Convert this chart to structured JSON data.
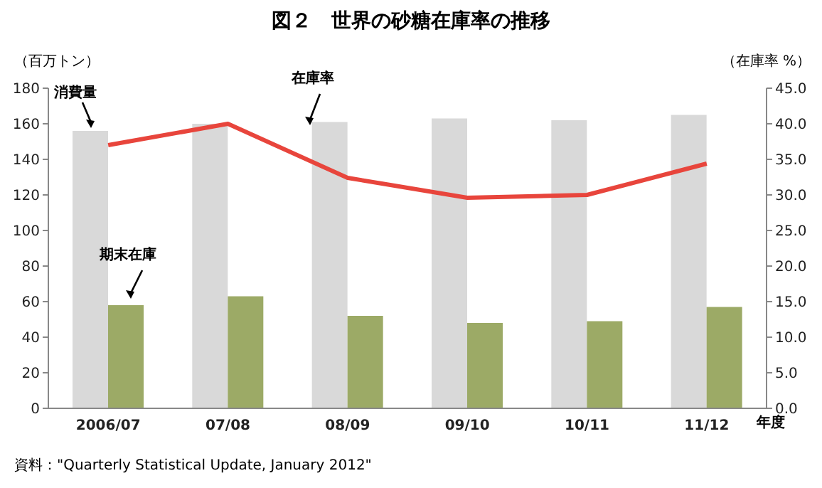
{
  "chart_data": {
    "type": "bar",
    "title": "図２　世界の砂糖在庫率の推移",
    "xlabel": "年度",
    "ylabel": "（百万トン）",
    "y2label": "（在庫率 %）",
    "categories": [
      "2006/07",
      "07/08",
      "08/09",
      "09/10",
      "10/11",
      "11/12"
    ],
    "series": [
      {
        "name": "消費量",
        "color": "#d9d9d9",
        "values": [
          156,
          160,
          161,
          163,
          162,
          165
        ]
      },
      {
        "name": "期末在庫",
        "color": "#9caa66",
        "values": [
          58,
          63,
          52,
          48,
          49,
          57
        ]
      },
      {
        "name": "在庫率",
        "type": "line",
        "axis": "y2",
        "color": "#e8453c",
        "values": [
          37.0,
          40.0,
          32.4,
          29.6,
          30.0,
          34.4
        ]
      }
    ],
    "ylim": [
      0,
      180
    ],
    "yticks": [
      0,
      20,
      40,
      60,
      80,
      100,
      120,
      140,
      160,
      180
    ],
    "y2lim": [
      0,
      45
    ],
    "y2ticks": [
      {
        "value": 0,
        "label": "0.0"
      },
      {
        "value": 5,
        "label": "5.0"
      },
      {
        "value": 10,
        "label": "10.0"
      },
      {
        "value": 15,
        "label": "15.0"
      },
      {
        "value": 20,
        "label": "20.0"
      },
      {
        "value": 25,
        "label": "25.0"
      },
      {
        "value": 30,
        "label": "30.0"
      },
      {
        "value": 35,
        "label": "35.0"
      },
      {
        "value": 40,
        "label": "40.0"
      },
      {
        "value": 45,
        "label": "45.0"
      }
    ],
    "marker": "none",
    "annotations": [
      "資料：\"Quarterly Statistical Update, January 2012\""
    ]
  }
}
